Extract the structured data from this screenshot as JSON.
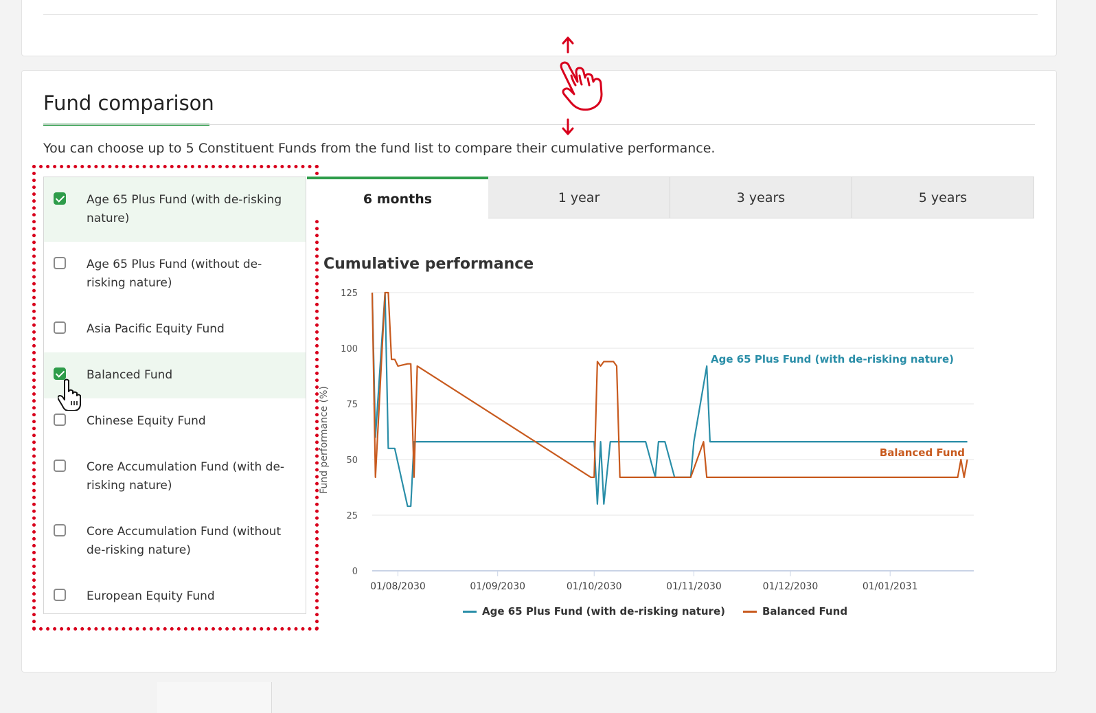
{
  "section": {
    "title": "Fund comparison",
    "intro": "You can choose up to 5 Constituent Funds from the fund list to compare their cumulative performance."
  },
  "funds": [
    {
      "label": "Age 65 Plus Fund (with de-risking nature)",
      "checked": true
    },
    {
      "label": "Age 65 Plus Fund (without de-risking nature)",
      "checked": false
    },
    {
      "label": "Asia Pacific Equity Fund",
      "checked": false
    },
    {
      "label": "Balanced Fund",
      "checked": true
    },
    {
      "label": "Chinese Equity Fund",
      "checked": false
    },
    {
      "label": "Core Accumulation Fund (with de-risking nature)",
      "checked": false
    },
    {
      "label": "Core Accumulation Fund (without de-risking nature)",
      "checked": false
    },
    {
      "label": "European Equity Fund",
      "checked": false
    }
  ],
  "tabs": [
    {
      "label": "6 months",
      "active": true
    },
    {
      "label": "1 year",
      "active": false
    },
    {
      "label": "3 years",
      "active": false
    },
    {
      "label": "5 years",
      "active": false
    }
  ],
  "chart_data": {
    "type": "line",
    "title": "Cumulative performance",
    "xlabel": "",
    "ylabel": "Fund performance (%)",
    "ylim": [
      0,
      125
    ],
    "yticks": [
      0,
      25,
      50,
      75,
      100,
      125
    ],
    "xlim": [
      "2030-07-24",
      "2031-01-27"
    ],
    "xticks": [
      {
        "date": "2030-08-01",
        "label": "01/08/2030"
      },
      {
        "date": "2030-09-01",
        "label": "01/09/2030"
      },
      {
        "date": "2030-10-01",
        "label": "01/10/2030"
      },
      {
        "date": "2030-11-01",
        "label": "01/11/2030"
      },
      {
        "date": "2030-12-01",
        "label": "01/12/2030"
      },
      {
        "date": "2031-01-01",
        "label": "01/01/2031"
      }
    ],
    "grid": true,
    "legend": "bottom",
    "series": [
      {
        "name": "Age 65 Plus Fund (with de-risking nature)",
        "color": "#2a8ea8",
        "end_label": "Age 65 Plus Fund (with de-risking nature)",
        "points": [
          [
            "2030-07-24",
            125
          ],
          [
            "2030-07-25",
            60
          ],
          [
            "2030-07-28",
            125
          ],
          [
            "2030-07-29",
            55
          ],
          [
            "2030-07-31",
            55
          ],
          [
            "2030-08-04",
            29
          ],
          [
            "2030-08-05",
            29
          ],
          [
            "2030-08-06",
            58
          ],
          [
            "2030-10-01",
            58
          ],
          [
            "2030-10-02",
            30
          ],
          [
            "2030-10-03",
            58
          ],
          [
            "2030-10-04",
            30
          ],
          [
            "2030-10-06",
            58
          ],
          [
            "2030-10-17",
            58
          ],
          [
            "2030-10-20",
            42
          ],
          [
            "2030-10-21",
            58
          ],
          [
            "2030-10-23",
            58
          ],
          [
            "2030-10-26",
            42
          ],
          [
            "2030-10-31",
            42
          ],
          [
            "2030-11-01",
            58
          ],
          [
            "2030-11-05",
            92
          ],
          [
            "2030-11-06",
            58
          ],
          [
            "2031-01-25",
            58
          ]
        ]
      },
      {
        "name": "Balanced Fund",
        "color": "#c85a1e",
        "end_label": "Balanced Fund",
        "points": [
          [
            "2030-07-24",
            125
          ],
          [
            "2030-07-25",
            42
          ],
          [
            "2030-07-28",
            125
          ],
          [
            "2030-07-29",
            125
          ],
          [
            "2030-07-30",
            95
          ],
          [
            "2030-07-31",
            95
          ],
          [
            "2030-08-01",
            92
          ],
          [
            "2030-08-04",
            93
          ],
          [
            "2030-08-05",
            93
          ],
          [
            "2030-08-06",
            42
          ],
          [
            "2030-08-07",
            92
          ],
          [
            "2030-09-30",
            42
          ],
          [
            "2030-10-01",
            42
          ],
          [
            "2030-10-02",
            94
          ],
          [
            "2030-10-03",
            92
          ],
          [
            "2030-10-04",
            94
          ],
          [
            "2030-10-07",
            94
          ],
          [
            "2030-10-08",
            92
          ],
          [
            "2030-10-09",
            42
          ],
          [
            "2030-10-31",
            42
          ],
          [
            "2030-11-04",
            58
          ],
          [
            "2030-11-05",
            42
          ],
          [
            "2031-01-22",
            42
          ],
          [
            "2031-01-23",
            50
          ],
          [
            "2031-01-24",
            42
          ],
          [
            "2031-01-25",
            50
          ]
        ]
      }
    ]
  }
}
